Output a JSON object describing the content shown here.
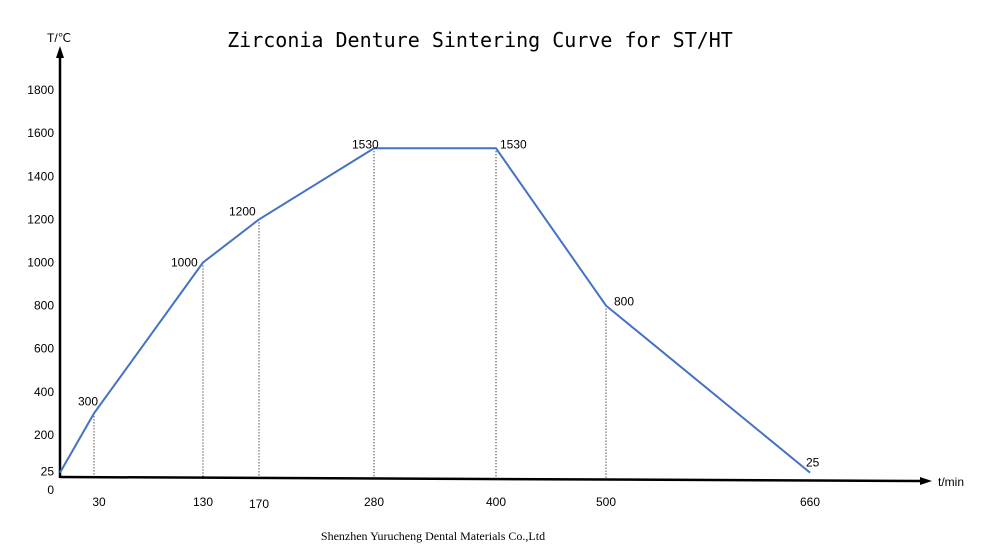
{
  "chart_data": {
    "type": "line",
    "title": "Zirconia Denture Sintering Curve for ST/HT",
    "xlabel": "t/min",
    "ylabel": "T/℃",
    "footer": "Shenzhen Yurucheng Dental Materials Co.,Ltd",
    "x_ticks": [
      30,
      130,
      170,
      280,
      400,
      500,
      660
    ],
    "y_ticks": [
      0,
      25,
      200,
      400,
      600,
      800,
      1000,
      1200,
      1400,
      1600,
      1800
    ],
    "xlim": [
      0,
      660
    ],
    "ylim": [
      0,
      1800
    ],
    "grid": false,
    "line_color": "#4472c4",
    "series": [
      {
        "x": [
          0,
          30,
          130,
          170,
          280,
          400,
          500,
          660
        ],
        "y": [
          25,
          300,
          1000,
          1200,
          1530,
          1530,
          800,
          25
        ],
        "point_labels": [
          "",
          "300",
          "1000",
          "1200",
          "1530",
          "1530",
          "800",
          "25"
        ]
      }
    ]
  }
}
